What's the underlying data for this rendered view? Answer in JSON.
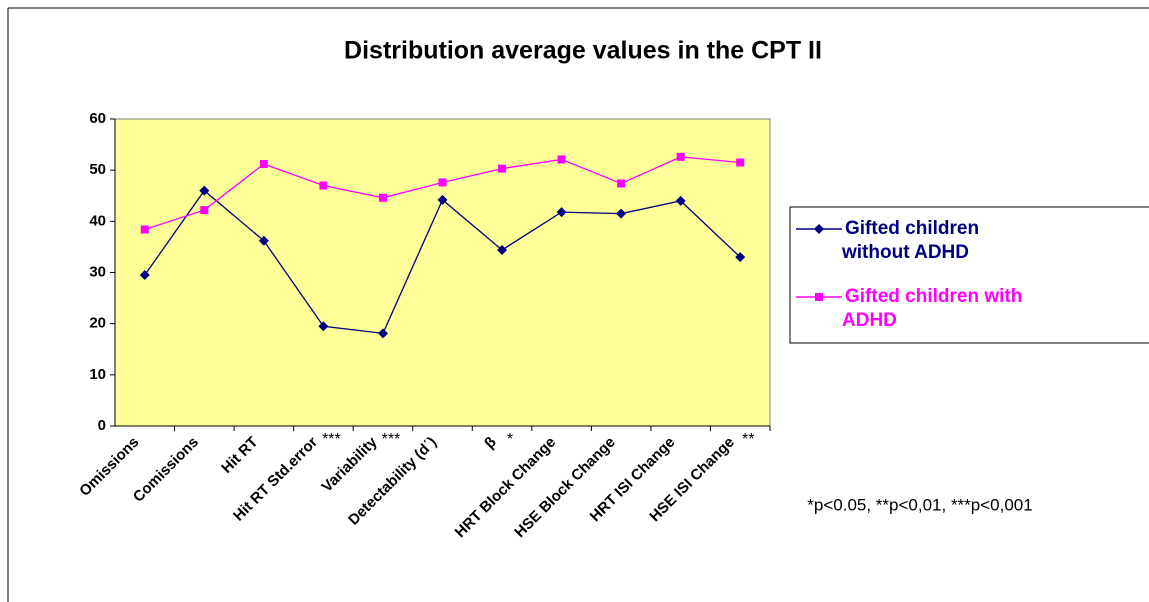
{
  "chart_data": {
    "type": "line",
    "title": "Distribution average values in the CPT II",
    "categories": [
      "Omissions",
      "Comissions",
      "Hit RT",
      "Hit RT Std.error",
      "Variability",
      "Detectability (d΄)",
      "β",
      "HRT Block Change",
      "HSE Block Change",
      "HRT ISI Change",
      "HSE ISI Change"
    ],
    "significance": [
      null,
      null,
      null,
      "***",
      "***",
      null,
      "*",
      null,
      null,
      null,
      "**"
    ],
    "series": [
      {
        "name": "Gifted children without ADHD",
        "color": "#000080",
        "marker": "diamond",
        "values": [
          29.5,
          46,
          36.2,
          19.5,
          18.1,
          44.2,
          34.4,
          41.8,
          41.5,
          44,
          33
        ]
      },
      {
        "name": "Gifted children with ADHD",
        "color": "#ff00ff",
        "marker": "square",
        "values": [
          38.4,
          42.2,
          51.2,
          47,
          44.6,
          47.6,
          50.3,
          52.1,
          47.4,
          52.6,
          51.5
        ]
      }
    ],
    "ylim": [
      0,
      60
    ],
    "yticks": [
      0,
      10,
      20,
      30,
      40,
      50,
      60
    ],
    "footnote": "*p<0.05, **p<0,01, ***p<0,001",
    "legend": "right"
  }
}
